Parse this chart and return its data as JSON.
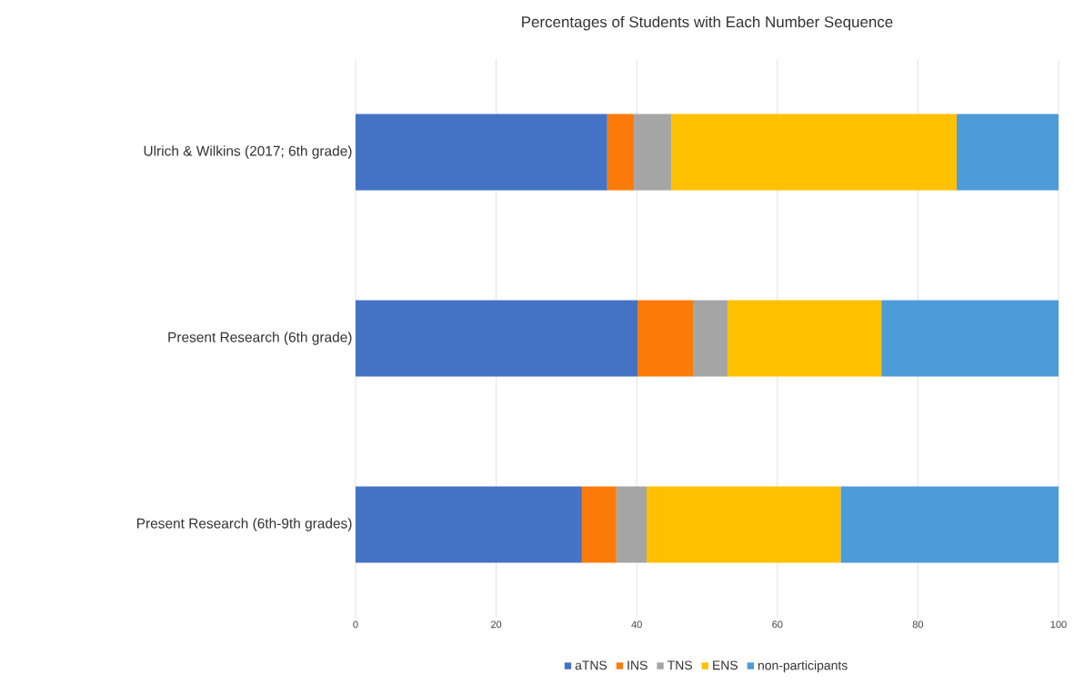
{
  "chart_data": {
    "type": "bar",
    "orientation": "horizontal",
    "stacked": true,
    "title": "Percentages of Students with Each Number Sequence",
    "categories": [
      "Ulrich & Wilkins (2017; 6th grade)",
      "Present Research (6th grade)",
      "Present Research (6th-9th grades)"
    ],
    "series": [
      {
        "name": "aTNS",
        "color": "#4472c4",
        "values": [
          35.8,
          40.1,
          32.2
        ]
      },
      {
        "name": "INS",
        "color": "#fb7b0a",
        "values": [
          3.8,
          7.9,
          4.9
        ]
      },
      {
        "name": "TNS",
        "color": "#a5a5a5",
        "values": [
          5.3,
          4.9,
          4.3
        ]
      },
      {
        "name": "ENS",
        "color": "#ffc000",
        "values": [
          40.6,
          21.9,
          27.6
        ]
      },
      {
        "name": "non-participants",
        "color": "#4e9bd9",
        "values": [
          14.5,
          25.2,
          31.0
        ]
      }
    ],
    "xlim": [
      0,
      100
    ],
    "xticks": [
      0,
      20,
      40,
      60,
      80,
      100
    ],
    "grid": "x",
    "legend": "bottom"
  }
}
